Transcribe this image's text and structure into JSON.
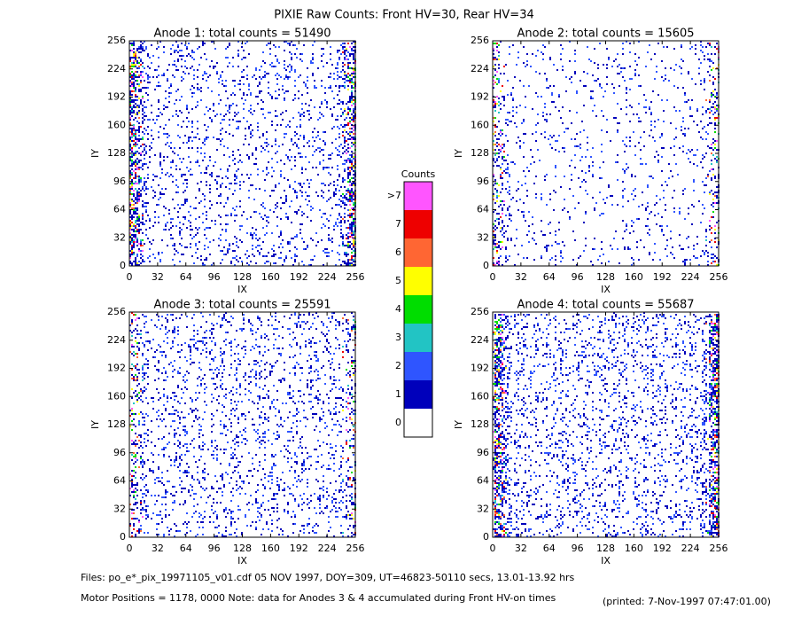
{
  "title": "PIXIE Raw Counts:  Front HV=30, Rear HV=34",
  "chart_data": [
    {
      "type": "heatmap",
      "title": "Anode 1: total counts = 51490",
      "xlabel": "IX",
      "ylabel": "IY",
      "xlim": [
        0,
        256
      ],
      "ylim": [
        0,
        256
      ],
      "xticks": [
        0,
        32,
        64,
        96,
        128,
        160,
        192,
        224,
        256
      ],
      "yticks": [
        0,
        32,
        64,
        96,
        128,
        160,
        192,
        224,
        256
      ]
    },
    {
      "type": "heatmap",
      "title": "Anode 2: total counts = 15605",
      "xlabel": "IX",
      "ylabel": "IY",
      "xlim": [
        0,
        256
      ],
      "ylim": [
        0,
        256
      ],
      "xticks": [
        0,
        32,
        64,
        96,
        128,
        160,
        192,
        224,
        256
      ],
      "yticks": [
        0,
        32,
        64,
        96,
        128,
        160,
        192,
        224,
        256
      ]
    },
    {
      "type": "heatmap",
      "title": "Anode 3: total counts = 25591",
      "xlabel": "IX",
      "ylabel": "IY",
      "xlim": [
        0,
        256
      ],
      "ylim": [
        0,
        256
      ],
      "xticks": [
        0,
        32,
        64,
        96,
        128,
        160,
        192,
        224,
        256
      ],
      "yticks": [
        0,
        32,
        64,
        96,
        128,
        160,
        192,
        224,
        256
      ]
    },
    {
      "type": "heatmap",
      "title": "Anode 4: total counts = 55687",
      "xlabel": "IX",
      "ylabel": "IY",
      "xlim": [
        0,
        256
      ],
      "ylim": [
        0,
        256
      ],
      "xticks": [
        0,
        32,
        64,
        96,
        128,
        160,
        192,
        224,
        256
      ],
      "yticks": [
        0,
        32,
        64,
        96,
        128,
        160,
        192,
        224,
        256
      ]
    }
  ],
  "colorbar": {
    "title": "Counts",
    "labels": [
      "0",
      "1",
      "2",
      "3",
      "4",
      "5",
      "6",
      "7",
      ">7"
    ],
    "colors": [
      "#ffffff",
      "#0000bb",
      "#2f55ff",
      "#22c4c4",
      "#00dd00",
      "#ffff00",
      "#ff6633",
      "#ee0000",
      "#ff55ff"
    ]
  },
  "footer": {
    "files": "Files: po_e*_pix_19971105_v01.cdf    05 NOV 1997, DOY=309, UT=46823-50110 secs, 13.01-13.92 hrs",
    "motor": "Motor Positions = 1178, 0000    Note: data for Anodes 3 & 4 accumulated during Front HV-on times",
    "printed": "(printed:  7-Nov-1997 07:47:01.00)"
  }
}
